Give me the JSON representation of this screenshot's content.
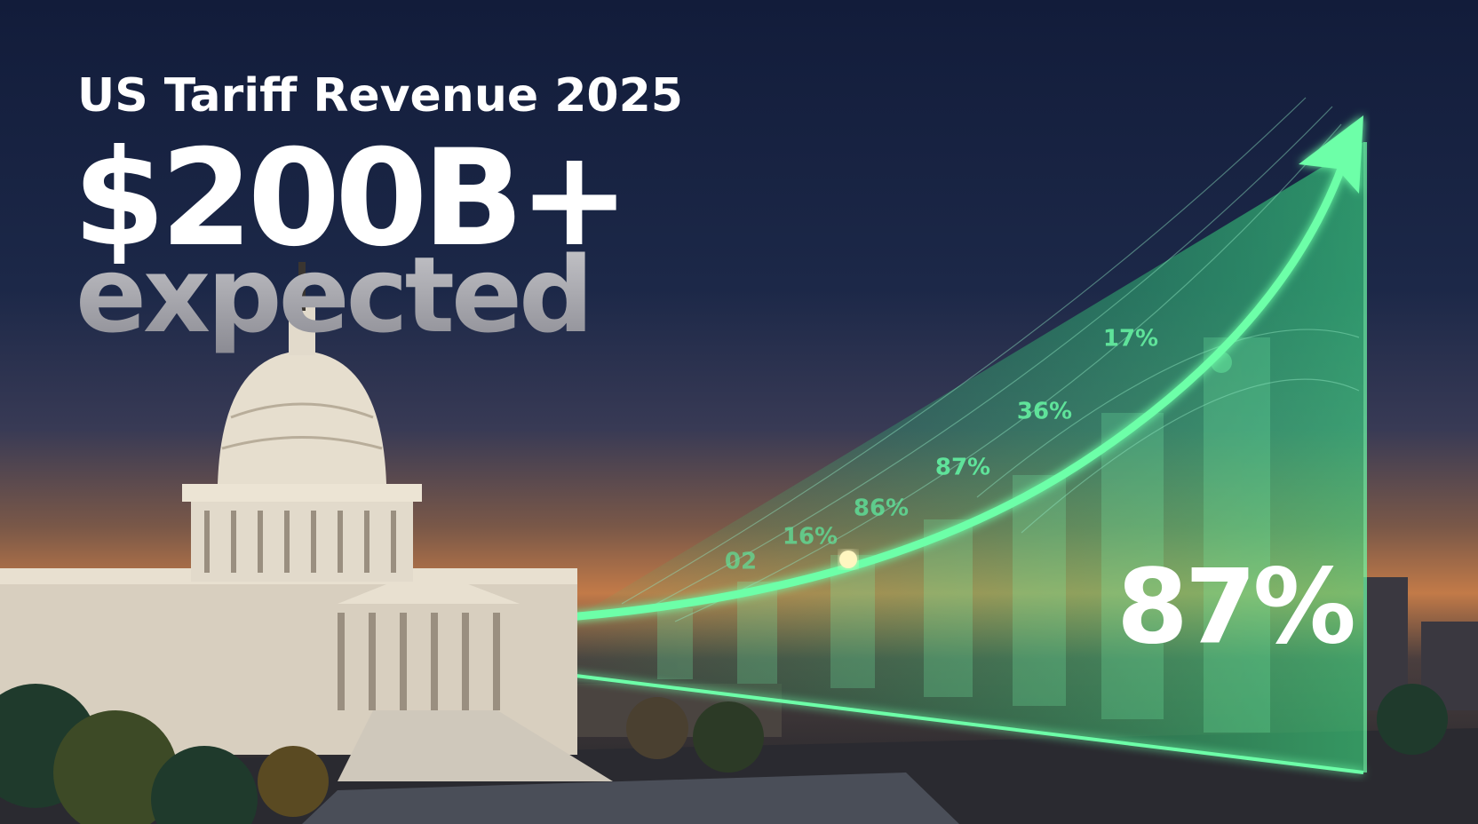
{
  "headline": {
    "title": "US Tariff Revenue 2025",
    "amount": "$200B+",
    "subtitle": "expected"
  },
  "graphic": {
    "labels": [
      "02",
      "16%",
      "86%",
      "87%",
      "36%",
      "17%"
    ],
    "highlight": "87%"
  }
}
